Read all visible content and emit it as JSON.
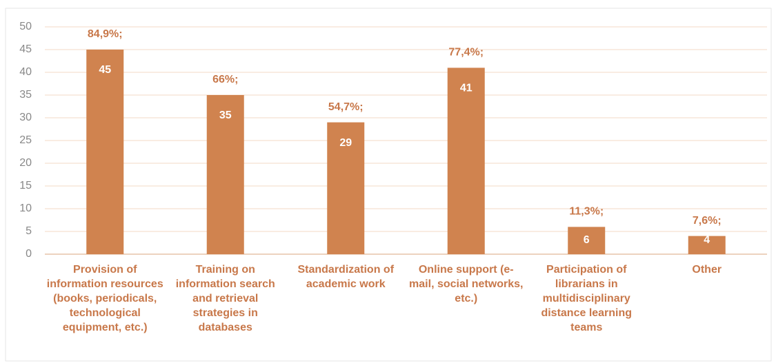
{
  "chart_data": {
    "type": "bar",
    "categories": [
      "Provision of information resources (books, periodicals, technological equipment, etc.)",
      "Training on information search and retrieval strategies in databases",
      "Standardization of academic work",
      "Online support (e-mail, social networks, etc.)",
      "Participation of librarians in multidisciplinary distance learning teams",
      "Other"
    ],
    "values": [
      45,
      35,
      29,
      41,
      6,
      4
    ],
    "percent_labels": [
      "84,9%;",
      "66%;",
      "54,7%;",
      "77,4%;",
      "11,3%;",
      "7,6%;"
    ],
    "color": "#d0834f",
    "ylim": [
      0,
      50
    ],
    "yticks": [
      0,
      5,
      10,
      15,
      20,
      25,
      30,
      35,
      40,
      45,
      50
    ],
    "grid": true
  }
}
